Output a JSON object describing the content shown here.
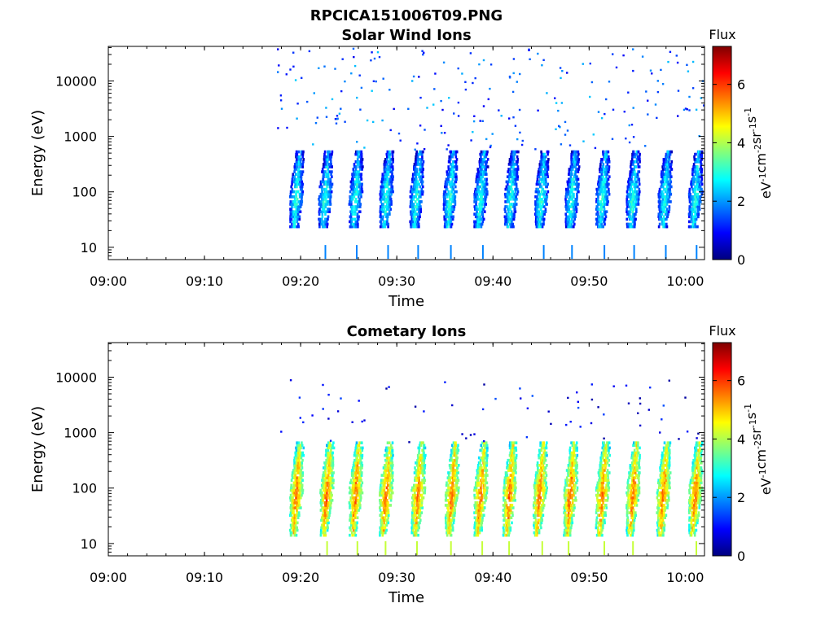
{
  "figure": {
    "title": "RPCICA151006T09.PNG"
  },
  "colorscale": {
    "name": "jet",
    "stops": [
      "#00007f",
      "#0000ff",
      "#007fff",
      "#00ffff",
      "#7fff7f",
      "#ffff00",
      "#ff7f00",
      "#ff0000",
      "#7f0000"
    ],
    "min": 0,
    "max": 7.3
  },
  "chart_data": [
    {
      "type": "heatmap",
      "title": "Solar Wind Ions",
      "xlabel": "Time",
      "ylabel": "Energy (eV)",
      "y_scale": "log",
      "xlim": [
        "09:00",
        "10:02"
      ],
      "ylim": [
        6,
        42000
      ],
      "x_ticks": [
        "09:00",
        "09:10",
        "09:20",
        "09:30",
        "09:40",
        "09:50",
        "10:00"
      ],
      "y_ticks": [
        10,
        100,
        1000,
        10000
      ],
      "y_tick_labels": [
        "10",
        "100",
        "1000",
        "10000"
      ],
      "colorbar": {
        "label": "Flux",
        "units": "eV-1cm-2sr-1s-1",
        "ticks": [
          0,
          2,
          4,
          6
        ],
        "range": [
          0,
          7.3
        ]
      },
      "data_start": "09:17:30",
      "burst_centers": [
        "09:19:30",
        "09:22:30",
        "09:25:40",
        "09:28:50",
        "09:32:00",
        "09:35:30",
        "09:38:40",
        "09:41:50",
        "09:45:00",
        "09:48:10",
        "09:51:20",
        "09:54:30",
        "09:57:50",
        "10:01:00"
      ],
      "core_energy_range_eV": [
        25,
        600
      ],
      "core_flux": [
        0.5,
        3.2
      ],
      "scattered_energy_range_eV": [
        600,
        40000
      ],
      "scattered_flux": [
        0.8,
        2.4
      ]
    },
    {
      "type": "heatmap",
      "title": "Cometary Ions",
      "xlabel": "Time",
      "ylabel": "Energy (eV)",
      "y_scale": "log",
      "xlim": [
        "09:00",
        "10:02"
      ],
      "ylim": [
        6,
        42000
      ],
      "x_ticks": [
        "09:00",
        "09:10",
        "09:20",
        "09:30",
        "09:40",
        "09:50",
        "10:00"
      ],
      "y_ticks": [
        10,
        100,
        1000,
        10000
      ],
      "y_tick_labels": [
        "10",
        "100",
        "1000",
        "10000"
      ],
      "colorbar": {
        "label": "Flux",
        "units": "eV-1cm-2sr-1s-1",
        "ticks": [
          0,
          2,
          4,
          6
        ],
        "range": [
          0,
          7.3
        ]
      },
      "data_start": "09:17:30",
      "burst_centers": [
        "09:19:30",
        "09:22:40",
        "09:25:40",
        "09:28:50",
        "09:32:10",
        "09:35:40",
        "09:38:40",
        "09:41:40",
        "09:44:50",
        "09:48:00",
        "09:51:20",
        "09:54:30",
        "09:57:40",
        "10:01:00"
      ],
      "core_energy_range_eV": [
        15,
        700
      ],
      "core_flux": [
        2.5,
        5.8
      ],
      "scattered_energy_range_eV": [
        700,
        10000
      ],
      "scattered_flux": [
        0.2,
        1.5
      ]
    }
  ]
}
